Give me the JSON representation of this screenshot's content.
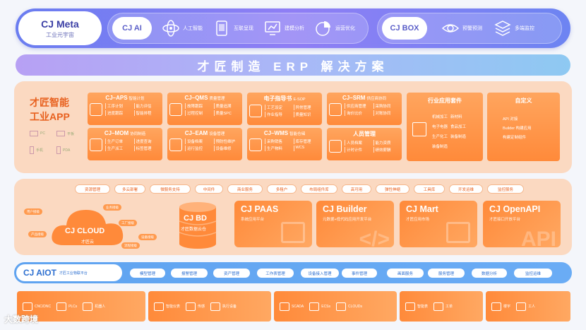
{
  "meta": {
    "title": "CJ Meta",
    "subtitle": "工业元宇宙",
    "ai_label": "CJ AI",
    "ai_features": [
      "人工智能",
      "互联呈现",
      "建模分析",
      "运营优化"
    ],
    "box_label": "CJ BOX",
    "box_features": [
      "预警预测",
      "多端监控"
    ]
  },
  "banner": "才匠制造 ERP 解决方案",
  "apps": {
    "title_line1": "才匠智能",
    "title_line2": "工业APP",
    "devices": [
      "PC",
      "平板",
      "手机",
      "PDA"
    ],
    "cards": [
      {
        "name": "CJ–APS",
        "sub": "智能计划",
        "items": [
          "工序计划",
          "能力评估",
          "进度跟踪",
          "智能排程"
        ]
      },
      {
        "name": "CJ–QMS",
        "sub": "质量管理",
        "items": [
          "故障跟踪",
          "质量追溯",
          "过程控制",
          "质量SPC"
        ]
      },
      {
        "name": "电子指导书",
        "sub": "E-SOP",
        "items": [
          "工艺设定",
          "异常管理",
          "作业指导",
          "质量知识"
        ]
      },
      {
        "name": "CJ–SRM",
        "sub": "供应商协同",
        "items": [
          "供应商管理",
          "采购协同",
          "询价比价",
          "对账协同"
        ]
      },
      {
        "name": "CJ–MOM",
        "sub": "协同制造",
        "items": [
          "生产订单",
          "进度查询",
          "生产派工",
          "标签管理"
        ]
      },
      {
        "name": "CJ–EAM",
        "sub": "设备管理",
        "items": [
          "设备档案",
          "预防性维护",
          "运行监控",
          "设备维修"
        ]
      },
      {
        "name": "CJ–WMS",
        "sub": "智能仓储",
        "items": [
          "采购销售",
          "库存管理",
          "生产物料",
          "WCS"
        ]
      },
      {
        "name": "人员管理",
        "sub": "",
        "items": [
          "人员档案",
          "能力资质",
          "计时计件",
          "绩效薪酬"
        ]
      }
    ],
    "industry": {
      "title": "行业应用套件",
      "items": [
        "机械加工",
        "新材料",
        "电子电器",
        "食品加工",
        "生产化工",
        "装备制造",
        "装备制造"
      ]
    },
    "custom": {
      "title": "自定义",
      "items": [
        "API 对接",
        "Builder 构建应用",
        "构建定制组件"
      ]
    }
  },
  "platform": {
    "tags": [
      "资源管理",
      "多云部署",
      "微服务支持",
      "中间件",
      "商业服务",
      "多租户",
      "布局组件库",
      "高可用",
      "弹性伸缩",
      "工具库",
      "开发运维",
      "监控服务"
    ],
    "cloud": {
      "title": "CJ CLOUD",
      "subtitle": "才匠云",
      "bubbles": [
        "用户接级",
        "业务接级",
        "产品接级",
        "工厂接级",
        "设备接级",
        "流程接级"
      ]
    },
    "bd": {
      "title": "CJ BD",
      "subtitle": "才匠数据云仓"
    },
    "cards": [
      {
        "title": "CJ PAAS",
        "sub": "系统应用平台",
        "bg": ""
      },
      {
        "title": "CJ Builder",
        "sub": "元数据+低代码应用开发平台",
        "bg": "</>"
      },
      {
        "title": "CJ Mart",
        "sub": "才匠应用市场",
        "bg": ""
      },
      {
        "title": "CJ OpenAPI",
        "sub": "才匠接口开放平台",
        "bg": "API"
      }
    ]
  },
  "aiot": {
    "title": "CJ AIOT",
    "subtitle": "才匠工业物联平台",
    "tags": [
      "模型管理",
      "报警管理",
      "资产管理",
      "工作表管理",
      "设备接入管理",
      "事件管理",
      "画面服务",
      "服务管理",
      "数据分析",
      "监控运维"
    ]
  },
  "devices": {
    "groups": [
      [
        "CNC/DNC",
        "PLCs",
        "机器人"
      ],
      [
        "智能仪表",
        "传感",
        "执行设备"
      ],
      [
        "SCADA",
        "ECSs",
        "CLOUDs"
      ],
      [
        "智能表",
        "工单"
      ],
      [
        "楼宇",
        "工人"
      ]
    ]
  },
  "watermark": "大数跨境",
  "colors": {
    "meta": "#7b80f2",
    "orange": "#ff8a3a",
    "peach": "#fbd9c1",
    "blue": "#5fa3f0"
  }
}
